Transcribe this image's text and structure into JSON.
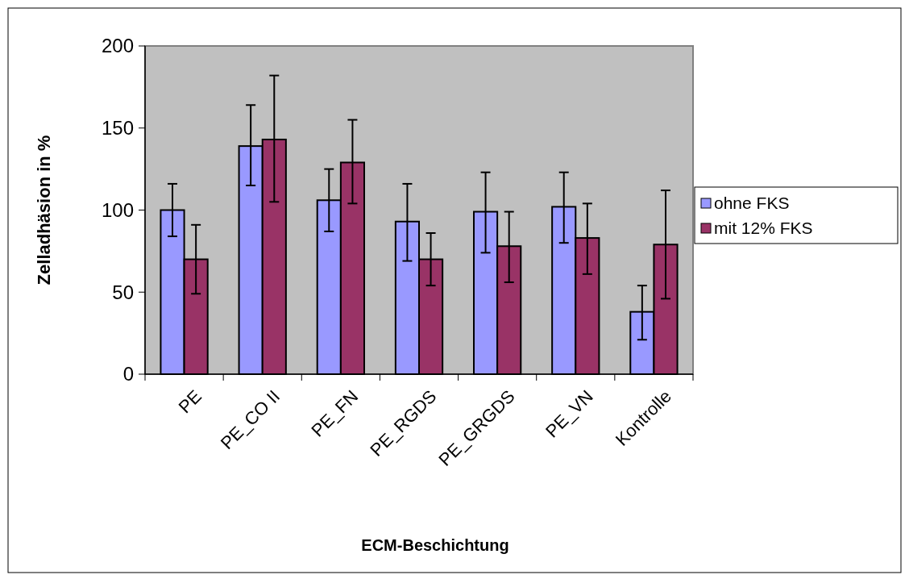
{
  "chart_data": {
    "type": "bar",
    "xlabel": "ECM-Beschichtung",
    "ylabel": "Zelladhäsion in %",
    "categories": [
      "PE",
      "PE_CO II",
      "PE_FN",
      "PE_RGDS",
      "PE_GRGDS",
      "PE_VN",
      "Kontrolle"
    ],
    "series": [
      {
        "name": "ohne FKS",
        "color": "#9999ff",
        "values": [
          100,
          139,
          106,
          93,
          99,
          102,
          38
        ],
        "errors": [
          [
            84,
            116
          ],
          [
            115,
            164
          ],
          [
            87,
            125
          ],
          [
            69,
            116
          ],
          [
            74,
            123
          ],
          [
            80,
            123
          ],
          [
            21,
            54
          ]
        ]
      },
      {
        "name": "mit 12% FKS",
        "color": "#993366",
        "values": [
          70,
          143,
          129,
          70,
          78,
          83,
          79
        ],
        "errors": [
          [
            49,
            91
          ],
          [
            105,
            182
          ],
          [
            104,
            155
          ],
          [
            54,
            86
          ],
          [
            56,
            99
          ],
          [
            61,
            104
          ],
          [
            46,
            112
          ]
        ]
      }
    ],
    "ylim": [
      0,
      200
    ],
    "yticks": [
      0,
      50,
      100,
      150,
      200
    ],
    "grid": false,
    "legend": "right"
  }
}
